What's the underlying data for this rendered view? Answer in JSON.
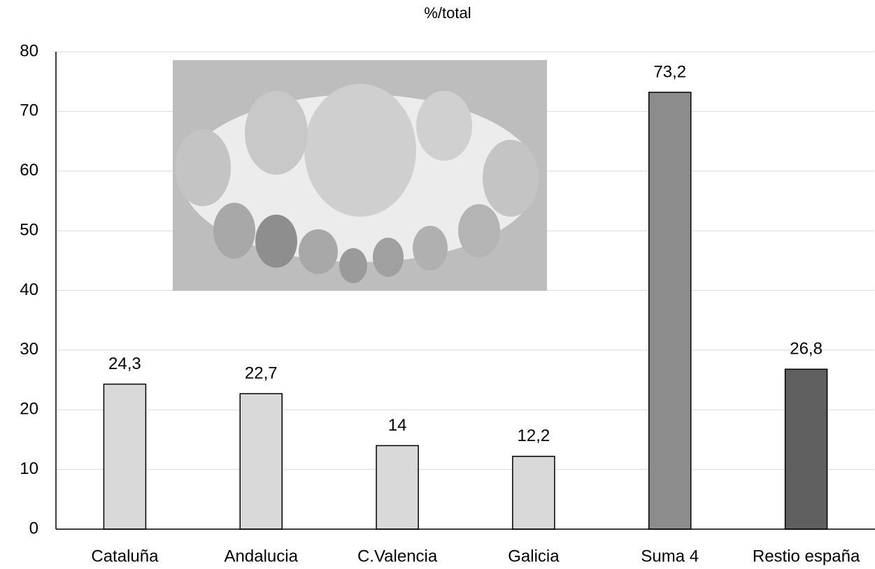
{
  "chart_data": {
    "type": "bar",
    "title": "%/total",
    "categories": [
      "Cataluña",
      "Andalucia",
      "C.Valencia",
      "Galicia",
      "Suma 4",
      "Restio españa"
    ],
    "values": [
      24.3,
      22.7,
      14,
      12.2,
      73.2,
      26.8
    ],
    "value_labels": [
      "24,3",
      "22,7",
      "14",
      "12,2",
      "73,2",
      "26,8"
    ],
    "colors": [
      "#d9d9d9",
      "#d9d9d9",
      "#d9d9d9",
      "#d9d9d9",
      "#8c8c8c",
      "#5f5f5f"
    ],
    "ylim": [
      0,
      80
    ],
    "yticks": [
      0,
      10,
      20,
      30,
      40,
      50,
      60,
      70,
      80
    ],
    "grid": true
  }
}
